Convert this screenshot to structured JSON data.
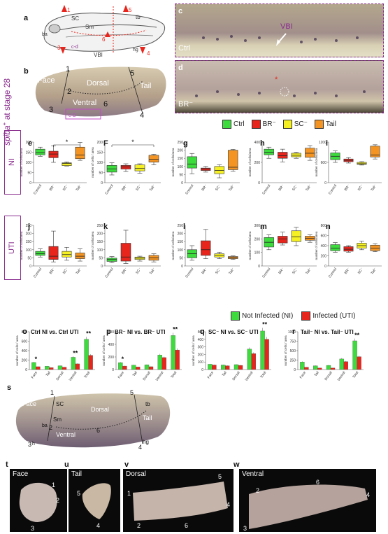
{
  "side_label": {
    "gene": "spiba",
    "sup": "+",
    "rest": " at stage 28"
  },
  "panel_letters": {
    "a": "a",
    "b": "b",
    "c": "c",
    "d": "d",
    "e": "e",
    "F": "F",
    "g": "g",
    "h": "h",
    "i": "i",
    "j": "j",
    "k": "k",
    "l": "l",
    "m": "m",
    "n": "n",
    "o": "o",
    "p": "p",
    "q": "q",
    "r": "r",
    "s": "s",
    "t": "t",
    "u": "u",
    "v": "v",
    "w": "w"
  },
  "schematic": {
    "labels": {
      "sc": "SC",
      "tb": "tb",
      "sm": "Sm",
      "ba": "ba",
      "cd": "c-d",
      "vbi": "VBI",
      "hg": "hg"
    },
    "nums": [
      "1",
      "2",
      "3",
      "4",
      "5",
      "6"
    ]
  },
  "panel_b": {
    "face": "Face",
    "dorsal": "Dorsal",
    "tail": "Tail",
    "ventral": "Ventral",
    "cd": "c-D",
    "nums": [
      "1",
      "2",
      "3",
      "4",
      "5",
      "6"
    ]
  },
  "panel_c": {
    "label": "Ctrl",
    "vbi": "VBI"
  },
  "panel_d": {
    "label": "BR⁻"
  },
  "legend_top": [
    {
      "label": "Ctrl",
      "color": "#3ddc3d"
    },
    {
      "label": "BR⁻",
      "color": "#e8251c"
    },
    {
      "label": "SC⁻",
      "color": "#f5f023"
    },
    {
      "label": "Tail",
      "color": "#f39423"
    }
  ],
  "row_labels": {
    "ni": "NI",
    "uti": "UTI"
  },
  "legend_mid": [
    {
      "label": "Not Infected (NI)",
      "color": "#3ddc3d"
    },
    {
      "label": "Infected (UTI)",
      "color": "#e8251c"
    }
  ],
  "bar_titles": {
    "o": "Ctrl NI vs. Ctrl UTI",
    "p": "BR⁻ NI vs. BR⁻ UTI",
    "q": "SC⁻ NI vs. SC⁻ UTI",
    "r": "Tail⁻ NI vs. Tail⁻ UTI"
  },
  "axis_titles": {
    "cells_area": "number of cells/area",
    "cells_area2": "number of cells / area"
  },
  "box_categories": [
    "Control",
    "BR⁻",
    "SC⁻",
    "Tail⁻"
  ],
  "bar_categories": [
    "Face",
    "Tail",
    "Dorsal",
    "Ventral",
    "Total"
  ],
  "panel_s": {
    "face": "Face",
    "sc": "SC",
    "sm": "Sm",
    "ba": "ba",
    "dorsal": "Dorsal",
    "tb": "tb",
    "tail": "Tail",
    "ventral": "Ventral",
    "hg": "hg",
    "h": "h",
    "nums": [
      "1",
      "2",
      "3",
      "4",
      "5",
      "6"
    ]
  },
  "panel_t": {
    "label": "Face",
    "nums": [
      "1",
      "2",
      "3"
    ]
  },
  "panel_u": {
    "label": "Tail",
    "nums": [
      "5",
      "4"
    ]
  },
  "panel_v": {
    "label": "Dorsal",
    "nums": [
      "1",
      "5",
      "4",
      "2",
      "6"
    ]
  },
  "panel_w": {
    "label": "Ventral",
    "nums": [
      "2",
      "6",
      "4",
      "3"
    ]
  },
  "chart_data": [
    {
      "id": "e",
      "type": "box",
      "ylim": [
        0,
        200
      ],
      "yticks": [
        "0",
        "50",
        "100",
        "150",
        "200"
      ],
      "ylabel": "number of cells/area",
      "categories": [
        "Control",
        "BR⁻",
        "SC⁻",
        "Tail⁻"
      ],
      "boxes": [
        {
          "min": 130,
          "q1": 137,
          "med": 148,
          "q3": 165,
          "max": 175
        },
        {
          "min": 100,
          "q1": 123,
          "med": 141,
          "q3": 155,
          "max": 182
        },
        {
          "min": 82,
          "q1": 84,
          "med": 95,
          "q3": 98,
          "max": 102
        },
        {
          "min": 110,
          "q1": 118,
          "med": 136,
          "q3": 175,
          "max": 198
        }
      ],
      "sig": [
        {
          "from": 1,
          "to": 3,
          "label": "*"
        }
      ]
    },
    {
      "id": "F",
      "type": "box",
      "ylim": [
        0,
        200
      ],
      "yticks": [
        "0",
        "50",
        "100",
        "150",
        "200"
      ],
      "ylabel": "number of cells / area",
      "categories": [
        "Control",
        "BR⁻",
        "SC⁻",
        "Tail⁻"
      ],
      "boxes": [
        {
          "min": 38,
          "q1": 52,
          "med": 68,
          "q3": 85,
          "max": 98
        },
        {
          "min": 55,
          "q1": 67,
          "med": 77,
          "q3": 85,
          "max": 93
        },
        {
          "min": 46,
          "q1": 58,
          "med": 70,
          "q3": 88,
          "max": 93
        },
        {
          "min": 88,
          "q1": 101,
          "med": 115,
          "q3": 135,
          "max": 140
        }
      ],
      "sig": [
        {
          "from": 0,
          "to": 3,
          "label": "*"
        }
      ]
    },
    {
      "id": "g",
      "type": "box",
      "ylim": [
        0,
        250
      ],
      "yticks": [
        "0",
        "50",
        "100",
        "150",
        "200",
        "250"
      ],
      "ylabel": "number of cells/area",
      "categories": [
        "Control",
        "BR⁻",
        "SC⁻",
        "Tail⁻"
      ],
      "boxes": [
        {
          "min": 55,
          "q1": 90,
          "med": 115,
          "q3": 160,
          "max": 180
        },
        {
          "min": 65,
          "q1": 75,
          "med": 85,
          "q3": 90,
          "max": 100
        },
        {
          "min": 30,
          "q1": 55,
          "med": 75,
          "q3": 100,
          "max": 110
        },
        {
          "min": 70,
          "q1": 80,
          "med": 95,
          "q3": 200,
          "max": 205
        }
      ],
      "sig": []
    },
    {
      "id": "h",
      "type": "box",
      "ylim": [
        0,
        400
      ],
      "yticks": [
        "0",
        "200",
        "400"
      ],
      "ylabel": "number of cells/area",
      "categories": [
        "Control",
        "BR⁻",
        "SC⁻",
        "Tail⁻"
      ],
      "boxes": [
        {
          "min": 240,
          "q1": 275,
          "med": 300,
          "q3": 330,
          "max": 350
        },
        {
          "min": 205,
          "q1": 240,
          "med": 265,
          "q3": 300,
          "max": 330
        },
        {
          "min": 240,
          "q1": 255,
          "med": 270,
          "q3": 290,
          "max": 300
        },
        {
          "min": 220,
          "q1": 250,
          "med": 290,
          "q3": 340,
          "max": 365
        }
      ],
      "sig": []
    },
    {
      "id": "i",
      "type": "box",
      "ylim": [
        0,
        1200
      ],
      "yticks": [
        "0",
        "600",
        "1200"
      ],
      "ylabel": "number of cells/area",
      "categories": [
        "Control",
        "BR⁻",
        "SC⁻",
        "Tail⁻"
      ],
      "boxes": [
        {
          "min": 600,
          "q1": 680,
          "med": 780,
          "q3": 880,
          "max": 940
        },
        {
          "min": 580,
          "q1": 620,
          "med": 660,
          "q3": 700,
          "max": 740
        },
        {
          "min": 520,
          "q1": 540,
          "med": 560,
          "q3": 600,
          "max": 620
        },
        {
          "min": 700,
          "q1": 760,
          "med": 820,
          "q3": 1080,
          "max": 1120
        }
      ],
      "sig": []
    },
    {
      "id": "j",
      "type": "box",
      "ylim": [
        0,
        250
      ],
      "yticks": [
        "0",
        "50",
        "100",
        "150",
        "200",
        "250"
      ],
      "ylabel": "number of cells/area",
      "categories": [
        "Control",
        "BR⁻",
        "SC⁻",
        "Tail⁻"
      ],
      "boxes": [
        {
          "min": 55,
          "q1": 65,
          "med": 75,
          "q3": 90,
          "max": 105
        },
        {
          "min": 25,
          "q1": 40,
          "med": 60,
          "q3": 120,
          "max": 215
        },
        {
          "min": 35,
          "q1": 55,
          "med": 70,
          "q3": 90,
          "max": 115
        },
        {
          "min": 30,
          "q1": 45,
          "med": 60,
          "q3": 80,
          "max": 105
        }
      ],
      "sig": []
    },
    {
      "id": "k",
      "type": "box",
      "ylim": [
        0,
        250
      ],
      "yticks": [
        "0",
        "50",
        "100",
        "150",
        "200",
        "250"
      ],
      "ylabel": "number of cells/area",
      "categories": [
        "Control",
        "BR⁻",
        "SC⁻",
        "Tail⁻"
      ],
      "boxes": [
        {
          "min": 20,
          "q1": 28,
          "med": 40,
          "q3": 48,
          "max": 58
        },
        {
          "min": 15,
          "q1": 30,
          "med": 55,
          "q3": 140,
          "max": 220
        },
        {
          "min": 30,
          "q1": 40,
          "med": 48,
          "q3": 55,
          "max": 60
        },
        {
          "min": 25,
          "q1": 35,
          "med": 50,
          "q3": 65,
          "max": 75
        }
      ],
      "sig": []
    },
    {
      "id": "l",
      "type": "box",
      "ylim": [
        0,
        250
      ],
      "yticks": [
        "0",
        "50",
        "100",
        "150",
        "200",
        "250"
      ],
      "ylabel": "number of cells/area",
      "categories": [
        "Control",
        "BR⁻",
        "SC⁻",
        "Tail⁻"
      ],
      "boxes": [
        {
          "min": 35,
          "q1": 50,
          "med": 75,
          "q3": 100,
          "max": 125
        },
        {
          "min": 45,
          "q1": 65,
          "med": 100,
          "q3": 155,
          "max": 225
        },
        {
          "min": 45,
          "q1": 55,
          "med": 65,
          "q3": 75,
          "max": 85
        },
        {
          "min": 40,
          "q1": 45,
          "med": 52,
          "q3": 58,
          "max": 62
        }
      ],
      "sig": []
    },
    {
      "id": "m",
      "type": "box",
      "ylim": [
        0,
        300
      ],
      "yticks": [
        "0",
        "100",
        "200",
        "300"
      ],
      "ylabel": "number of cells/area",
      "categories": [
        "Control",
        "BR⁻",
        "SC⁻",
        "Tail⁻"
      ],
      "boxes": [
        {
          "min": 120,
          "q1": 140,
          "med": 175,
          "q3": 210,
          "max": 230
        },
        {
          "min": 155,
          "q1": 170,
          "med": 200,
          "q3": 220,
          "max": 250
        },
        {
          "min": 150,
          "q1": 180,
          "med": 215,
          "q3": 260,
          "max": 285
        },
        {
          "min": 175,
          "q1": 190,
          "med": 205,
          "q3": 220,
          "max": 230
        }
      ],
      "sig": []
    },
    {
      "id": "n",
      "type": "box",
      "ylim": [
        0,
        800
      ],
      "yticks": [
        "0",
        "200",
        "400",
        "600",
        "800"
      ],
      "ylabel": "number of cells/area",
      "categories": [
        "Control",
        "BR⁻",
        "SC⁻",
        "Tail⁻"
      ],
      "boxes": [
        {
          "min": 270,
          "q1": 300,
          "med": 350,
          "q3": 420,
          "max": 460
        },
        {
          "min": 270,
          "q1": 290,
          "med": 330,
          "q3": 380,
          "max": 400
        },
        {
          "min": 320,
          "q1": 350,
          "med": 400,
          "q3": 450,
          "max": 490
        },
        {
          "min": 280,
          "q1": 300,
          "med": 350,
          "q3": 410,
          "max": 440
        }
      ],
      "sig": []
    },
    {
      "id": "o",
      "type": "bar",
      "ylim": [
        0,
        800
      ],
      "yticks": [
        "0",
        "200",
        "400",
        "600",
        "800"
      ],
      "ylabel": "number of cells / area",
      "categories": [
        "Face",
        "Tail",
        "Dorsal",
        "Ventral",
        "Total"
      ],
      "series": [
        {
          "name": "Not Infected (NI)",
          "values": [
            150,
            70,
            80,
            260,
            640
          ]
        },
        {
          "name": "Infected (UTI)",
          "values": [
            60,
            40,
            50,
            120,
            300
          ]
        }
      ],
      "stars": [
        "*",
        "",
        "",
        "**",
        "**"
      ]
    },
    {
      "id": "p",
      "type": "bar",
      "ylim": [
        0,
        600
      ],
      "yticks": [
        "0",
        "200",
        "400",
        "600"
      ],
      "ylabel": "number of cells / area",
      "categories": [
        "Face",
        "Tail",
        "Dorsal",
        "Ventral",
        "Total"
      ],
      "series": [
        {
          "name": "Not Infected (NI)",
          "values": [
            110,
            70,
            75,
            230,
            540
          ]
        },
        {
          "name": "Infected (UTI)",
          "values": [
            55,
            40,
            45,
            190,
            310
          ]
        }
      ],
      "stars": [
        "*",
        "",
        "",
        "",
        "**"
      ]
    },
    {
      "id": "q",
      "type": "bar",
      "ylim": [
        0,
        500
      ],
      "yticks": [
        "0",
        "100",
        "200",
        "300",
        "400",
        "500"
      ],
      "ylabel": "number of cells / area",
      "categories": [
        "Face",
        "Tail",
        "Dorsal",
        "Ventral",
        "Total"
      ],
      "series": [
        {
          "name": "Not Infected (NI)",
          "values": [
            70,
            60,
            65,
            270,
            510
          ]
        },
        {
          "name": "Infected (UTI)",
          "values": [
            60,
            50,
            55,
            210,
            400
          ]
        }
      ],
      "stars": [
        "",
        "",
        "",
        "",
        "**"
      ]
    },
    {
      "id": "r",
      "type": "bar",
      "ylim": [
        0,
        1000
      ],
      "yticks": [
        "0",
        "250",
        "500",
        "750",
        "1000"
      ],
      "ylabel": "number of cells / area",
      "categories": [
        "Face",
        "Tail",
        "Dorsal",
        "Ventral",
        "Total"
      ],
      "series": [
        {
          "name": "Not Infected (NI)",
          "values": [
            200,
            100,
            110,
            280,
            760
          ]
        },
        {
          "name": "Infected (UTI)",
          "values": [
            60,
            40,
            40,
            210,
            340
          ]
        }
      ],
      "stars": [
        "",
        "",
        "",
        "",
        "**"
      ]
    }
  ]
}
